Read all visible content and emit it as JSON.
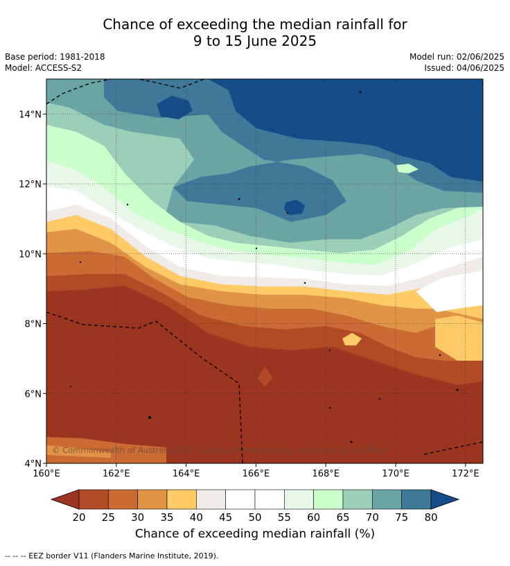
{
  "title_line1": "Chance of exceeding the median rainfall for",
  "title_line2": "9 to 15 June 2025",
  "meta_left": {
    "base_period": "Base period: 1981-2018",
    "model": "Model: ACCESS-S2"
  },
  "meta_right": {
    "model_run": "Model run: 02/06/2025",
    "issued": "Issued: 04/06/2025"
  },
  "map": {
    "lon_range": [
      160,
      172.5
    ],
    "lat_range": [
      4,
      15
    ],
    "lon_ticks": [
      "160°E",
      "162°E",
      "164°E",
      "166°E",
      "168°E",
      "170°E",
      "172°E"
    ],
    "lat_ticks": [
      "4°N",
      "6°N",
      "8°N",
      "10°N",
      "12°N",
      "14°N"
    ],
    "copyright": "© Commonwealth of Australia 2025, Bureau of Meteorology, supported by COSPPac"
  },
  "colorbar": {
    "labels": [
      "20",
      "25",
      "30",
      "35",
      "40",
      "45",
      "50",
      "55",
      "60",
      "65",
      "70",
      "75",
      "80"
    ],
    "colors": [
      "#9b3520",
      "#b14a25",
      "#cc6a34",
      "#e19346",
      "#fdca66",
      "#efebe7",
      "#ffffff",
      "#ffffff",
      "#e9f6ea",
      "#caffcc",
      "#9bcfb8",
      "#6ba4a5",
      "#3f7899",
      "#144d87"
    ],
    "title": "Chance of exceeding median rainfall (%)"
  },
  "footer": "--  --  -- EEZ border V11 (Flanders Marine Institute, 2019)."
}
